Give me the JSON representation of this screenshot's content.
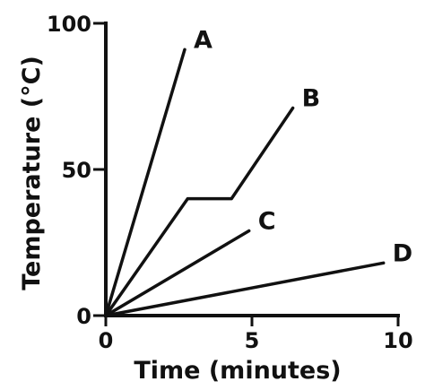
{
  "chart_data": {
    "type": "line",
    "title": "",
    "xlabel": "Time (minutes)",
    "ylabel": "Temperature (°C)",
    "xlim": [
      0,
      10
    ],
    "ylim": [
      0,
      100
    ],
    "x_ticks": [
      0,
      5,
      10
    ],
    "y_ticks": [
      0,
      50,
      100
    ],
    "x_tick_labels": [
      "0",
      "5",
      "10"
    ],
    "y_tick_labels": [
      "0",
      "50",
      "100"
    ],
    "grid": false,
    "legend": "none",
    "series": [
      {
        "name": "A",
        "x": [
          0,
          2.7
        ],
        "y": [
          0,
          91
        ]
      },
      {
        "name": "B",
        "x": [
          0,
          2.8,
          4.3,
          6.4
        ],
        "y": [
          0,
          40,
          40,
          71
        ]
      },
      {
        "name": "C",
        "x": [
          0,
          4.9
        ],
        "y": [
          0,
          29
        ]
      },
      {
        "name": "D",
        "x": [
          0,
          9.5
        ],
        "y": [
          0,
          18
        ]
      }
    ]
  }
}
